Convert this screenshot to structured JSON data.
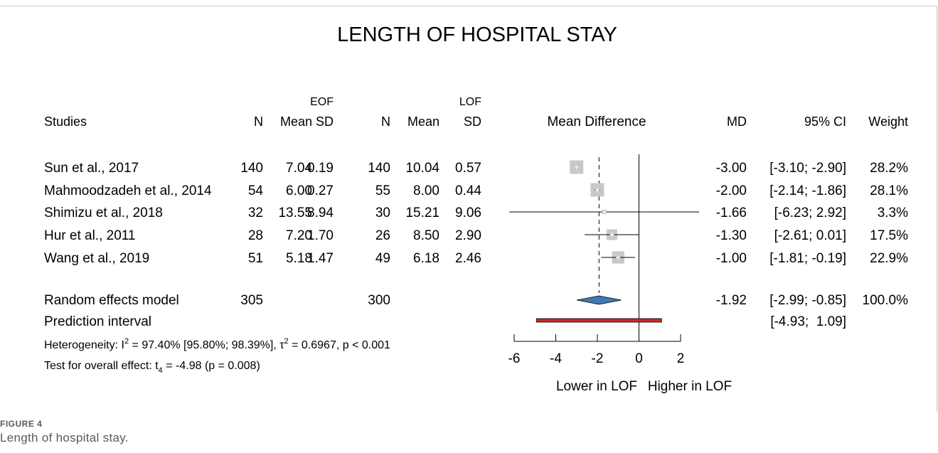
{
  "figure": {
    "label": "FIGURE 4",
    "caption": "Length of hospital stay."
  },
  "chart_data": {
    "type": "forest",
    "title": "LENGTH OF HOSPITAL STAY",
    "group_headers": {
      "experimental": "EOF",
      "control": "LOF"
    },
    "column_headers": {
      "study": "Studies",
      "n": "N",
      "mean": "Mean",
      "sd": "SD",
      "effect": "Mean Difference",
      "md": "MD",
      "ci": "95% CI",
      "weight": "Weight"
    },
    "studies": [
      {
        "name": "Sun et al., 2017",
        "n1": "140",
        "mean1": "7.04",
        "sd1": "0.19",
        "n2": "140",
        "mean2": "10.04",
        "sd2": "0.57",
        "md": -3.0,
        "lo": -3.1,
        "hi": -2.9,
        "md_text": "-3.00",
        "ci_text": "[-3.10; -2.90]",
        "weight_text": "28.2%"
      },
      {
        "name": "Mahmoodzadeh et al., 2014",
        "n1": "54",
        "mean1": "6.00",
        "sd1": "0.27",
        "n2": "55",
        "mean2": "8.00",
        "sd2": "0.44",
        "md": -2.0,
        "lo": -2.14,
        "hi": -1.86,
        "md_text": "-2.00",
        "ci_text": "[-2.14; -1.86]",
        "weight_text": "28.1%"
      },
      {
        "name": "Shimizu et al., 2018",
        "n1": "32",
        "mean1": "13.55",
        "sd1": "8.94",
        "n2": "30",
        "mean2": "15.21",
        "sd2": "9.06",
        "md": -1.66,
        "lo": -6.23,
        "hi": 2.92,
        "md_text": "-1.66",
        "ci_text": "[-6.23;  2.92]",
        "weight_text": "3.3%"
      },
      {
        "name": "Hur et al., 2011",
        "n1": "28",
        "mean1": "7.20",
        "sd1": "1.70",
        "n2": "26",
        "mean2": "8.50",
        "sd2": "2.90",
        "md": -1.3,
        "lo": -2.61,
        "hi": 0.01,
        "md_text": "-1.30",
        "ci_text": "[-2.61;  0.01]",
        "weight_text": "17.5%"
      },
      {
        "name": "Wang et al., 2019",
        "n1": "51",
        "mean1": "5.18",
        "sd1": "1.47",
        "n2": "49",
        "mean2": "6.18",
        "sd2": "2.46",
        "md": -1.0,
        "lo": -1.81,
        "hi": -0.19,
        "md_text": "-1.00",
        "ci_text": "[-1.81; -0.19]",
        "weight_text": "22.9%"
      }
    ],
    "random_effects": {
      "name": "Random effects model",
      "n1": "305",
      "n2": "300",
      "md": -1.92,
      "lo": -2.99,
      "hi": -0.85,
      "md_text": "-1.92",
      "ci_text": "[-2.99; -0.85]",
      "weight_text": "100.0%"
    },
    "prediction_interval": {
      "name": "Prediction interval",
      "lo": -4.93,
      "hi": 1.09,
      "ci_text": "[-4.93;  1.09]"
    },
    "heterogeneity": {
      "prefix": "Heterogeneity: I",
      "sup1": "2",
      "mid": " = 97.40% [95.80%; 98.39%], τ",
      "sup2": "2",
      "suffix": " = 0.6967, p < 0.001"
    },
    "overall_effect": {
      "prefix": "Test for overall effect: t",
      "sub": "4",
      "suffix": " = -4.98 (p = 0.008)"
    },
    "x_axis": {
      "min": -6,
      "max": 2,
      "ticks": [
        -6,
        -4,
        -2,
        0,
        2
      ]
    },
    "x_labels": {
      "left": "Lower in LOF",
      "right": "Higher in LOF"
    },
    "colors": {
      "square": "#c8c8c8",
      "diamond": "#3d79b4",
      "prediction": "#cc2a2a"
    }
  }
}
